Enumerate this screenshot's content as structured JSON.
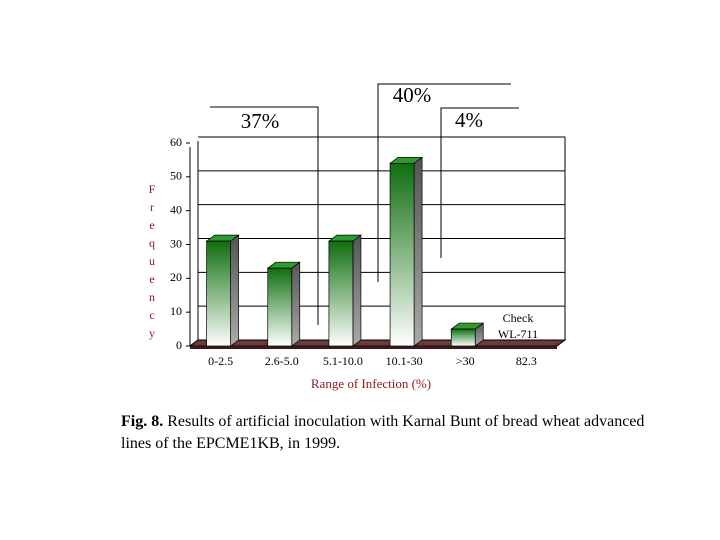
{
  "chart_data": {
    "type": "bar3d",
    "y_axis_label": "Frequency",
    "x_axis_label": "Range of Infection (%)",
    "categories": [
      "0-2.5",
      "2.6-5.0",
      "5.1-10.0",
      "10.1-30",
      ">30",
      "82.3"
    ],
    "values": [
      31,
      23,
      31,
      54,
      5,
      null
    ],
    "color": "#1e7a1e",
    "ylim": [
      0,
      60
    ],
    "yticks": [
      0,
      10,
      20,
      30,
      40,
      50,
      60
    ],
    "grid": true,
    "group_labels": [
      "37%",
      "40%",
      "4%"
    ],
    "check_label": [
      "Check",
      "WL-711"
    ]
  },
  "caption": {
    "label": "Fig. 8.",
    "text": "Results of artificial inoculation with Karnal Bunt of bread wheat advanced lines of the EPCME1KB, in 1999."
  }
}
